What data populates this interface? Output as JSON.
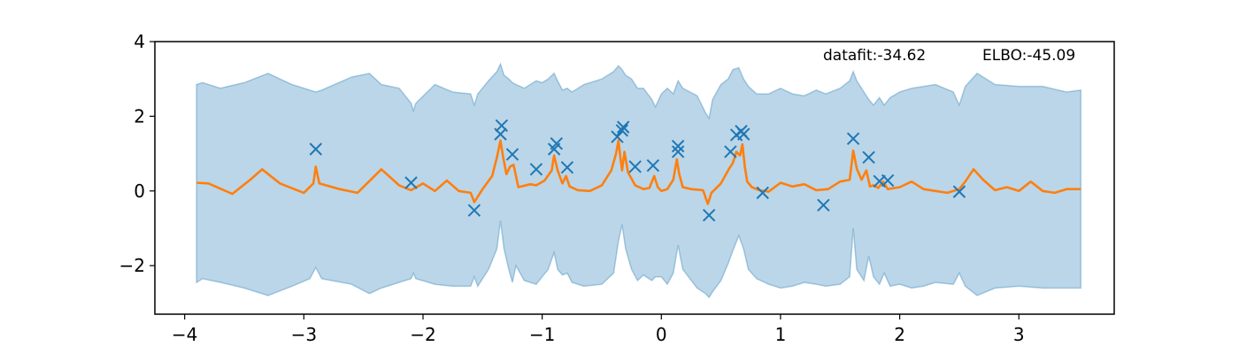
{
  "chart_data": {
    "type": "line",
    "title": "",
    "xlabel": "",
    "ylabel": "",
    "xlim": [
      -4.25,
      3.8
    ],
    "ylim": [
      -3.3,
      4.0
    ],
    "xticks": [
      -4,
      -3,
      -2,
      -1,
      0,
      1,
      2,
      3
    ],
    "yticks": [
      -2,
      0,
      2,
      4
    ],
    "grid": false,
    "annotations": {
      "datafit": "datafit:-34.62",
      "elbo": "ELBO:-45.09"
    },
    "colors": {
      "mean": "#ff7f0e",
      "band": "#1f77b4",
      "points": "#1f77b4"
    },
    "points": {
      "marker": "x",
      "x": [
        -2.9,
        -2.1,
        -1.57,
        -1.35,
        -1.34,
        -1.25,
        -1.05,
        -0.9,
        -0.88,
        -0.79,
        -0.37,
        -0.33,
        -0.32,
        -0.22,
        -0.07,
        0.14,
        0.14,
        0.4,
        0.58,
        0.63,
        0.67,
        0.69,
        0.85,
        1.36,
        1.61,
        1.74,
        1.83,
        1.9,
        2.5
      ],
      "y": [
        1.12,
        0.22,
        -0.52,
        1.52,
        1.75,
        0.98,
        0.58,
        1.12,
        1.27,
        0.63,
        1.45,
        1.62,
        1.71,
        0.65,
        0.68,
        1.05,
        1.2,
        -0.65,
        1.05,
        1.5,
        1.6,
        1.52,
        -0.05,
        -0.38,
        1.4,
        0.9,
        0.26,
        0.28,
        -0.02
      ]
    },
    "mean_x": [
      -3.9,
      -3.8,
      -3.6,
      -3.45,
      -3.35,
      -3.2,
      -3.0,
      -2.92,
      -2.9,
      -2.87,
      -2.7,
      -2.55,
      -2.35,
      -2.2,
      -2.1,
      -2.0,
      -1.9,
      -1.8,
      -1.7,
      -1.6,
      -1.57,
      -1.5,
      -1.42,
      -1.38,
      -1.35,
      -1.33,
      -1.3,
      -1.27,
      -1.24,
      -1.2,
      -1.1,
      -1.05,
      -0.98,
      -0.92,
      -0.9,
      -0.87,
      -0.83,
      -0.8,
      -0.77,
      -0.7,
      -0.6,
      -0.5,
      -0.42,
      -0.38,
      -0.36,
      -0.34,
      -0.33,
      -0.31,
      -0.28,
      -0.22,
      -0.15,
      -0.1,
      -0.06,
      -0.03,
      0.0,
      0.05,
      0.1,
      0.13,
      0.15,
      0.18,
      0.25,
      0.35,
      0.39,
      0.42,
      0.5,
      0.56,
      0.6,
      0.63,
      0.66,
      0.68,
      0.7,
      0.72,
      0.76,
      0.82,
      0.9,
      1.0,
      1.1,
      1.2,
      1.3,
      1.4,
      1.5,
      1.58,
      1.61,
      1.64,
      1.68,
      1.72,
      1.75,
      1.78,
      1.82,
      1.86,
      1.9,
      2.0,
      2.1,
      2.2,
      2.3,
      2.4,
      2.5,
      2.55,
      2.62,
      2.7,
      2.8,
      2.9,
      3.0,
      3.1,
      3.2,
      3.3,
      3.4,
      3.52
    ],
    "mean_y": [
      0.22,
      0.2,
      -0.08,
      0.3,
      0.58,
      0.2,
      -0.05,
      0.2,
      0.65,
      0.2,
      0.05,
      -0.05,
      0.58,
      0.15,
      0.02,
      0.2,
      0.0,
      0.28,
      0.0,
      -0.05,
      -0.3,
      0.05,
      0.4,
      0.9,
      1.35,
      0.95,
      0.45,
      0.65,
      0.7,
      0.1,
      0.18,
      0.15,
      0.28,
      0.55,
      0.95,
      0.55,
      0.2,
      0.4,
      0.12,
      0.02,
      0.0,
      0.15,
      0.55,
      1.0,
      1.35,
      0.8,
      0.55,
      1.05,
      0.5,
      0.15,
      0.05,
      0.08,
      0.4,
      0.1,
      0.0,
      0.05,
      0.3,
      0.85,
      0.45,
      0.1,
      0.05,
      0.02,
      -0.35,
      -0.05,
      0.2,
      0.55,
      0.75,
      1.05,
      0.95,
      1.25,
      0.65,
      0.25,
      0.1,
      0.02,
      -0.02,
      0.22,
      0.12,
      0.18,
      0.02,
      0.05,
      0.25,
      0.3,
      1.08,
      0.6,
      0.3,
      0.55,
      0.12,
      0.15,
      0.08,
      0.25,
      0.05,
      0.1,
      0.25,
      0.05,
      0.0,
      -0.05,
      0.05,
      0.25,
      0.58,
      0.3,
      0.02,
      0.1,
      0.0,
      0.25,
      0.0,
      -0.05,
      0.05,
      0.05
    ],
    "band_x": [
      -3.9,
      -3.85,
      -3.7,
      -3.5,
      -3.3,
      -3.1,
      -2.95,
      -2.9,
      -2.85,
      -2.6,
      -2.45,
      -2.35,
      -2.2,
      -2.1,
      -2.08,
      -2.06,
      -1.9,
      -1.75,
      -1.6,
      -1.57,
      -1.54,
      -1.45,
      -1.38,
      -1.35,
      -1.32,
      -1.28,
      -1.25,
      -1.22,
      -1.15,
      -1.05,
      -1.0,
      -0.95,
      -0.9,
      -0.87,
      -0.83,
      -0.79,
      -0.75,
      -0.65,
      -0.5,
      -0.4,
      -0.36,
      -0.33,
      -0.3,
      -0.25,
      -0.2,
      -0.15,
      -0.08,
      -0.05,
      0.0,
      0.05,
      0.1,
      0.14,
      0.18,
      0.3,
      0.37,
      0.4,
      0.43,
      0.5,
      0.56,
      0.6,
      0.65,
      0.69,
      0.73,
      0.8,
      0.9,
      1.0,
      1.1,
      1.2,
      1.3,
      1.38,
      1.5,
      1.58,
      1.61,
      1.64,
      1.7,
      1.74,
      1.78,
      1.83,
      1.87,
      1.92,
      2.0,
      2.1,
      2.2,
      2.3,
      2.45,
      2.5,
      2.55,
      2.65,
      2.8,
      3.0,
      3.2,
      3.4,
      3.52
    ],
    "band_upper": [
      2.85,
      2.9,
      2.75,
      2.9,
      3.15,
      2.85,
      2.7,
      2.65,
      2.7,
      3.05,
      3.15,
      2.85,
      2.75,
      2.35,
      2.15,
      2.35,
      2.85,
      2.65,
      2.6,
      2.3,
      2.6,
      2.95,
      3.2,
      3.4,
      3.1,
      3.0,
      2.9,
      2.85,
      2.75,
      2.95,
      2.9,
      3.0,
      3.15,
      2.95,
      2.7,
      2.75,
      2.65,
      2.85,
      3.0,
      3.2,
      3.35,
      3.25,
      3.1,
      3.0,
      2.75,
      2.75,
      2.45,
      2.25,
      2.6,
      2.75,
      2.6,
      2.95,
      2.75,
      2.55,
      2.1,
      1.95,
      2.45,
      2.85,
      3.0,
      3.25,
      3.3,
      3.0,
      2.8,
      2.6,
      2.6,
      2.75,
      2.6,
      2.55,
      2.7,
      2.6,
      2.75,
      2.95,
      3.2,
      2.95,
      2.65,
      2.45,
      2.3,
      2.5,
      2.3,
      2.5,
      2.65,
      2.75,
      2.8,
      2.85,
      2.65,
      2.3,
      2.8,
      3.15,
      2.85,
      2.8,
      2.8,
      2.65,
      2.7
    ],
    "band_lower": [
      -2.45,
      -2.35,
      -2.45,
      -2.6,
      -2.8,
      -2.55,
      -2.35,
      -2.05,
      -2.35,
      -2.5,
      -2.75,
      -2.6,
      -2.45,
      -2.35,
      -2.2,
      -2.35,
      -2.5,
      -2.55,
      -2.55,
      -2.3,
      -2.55,
      -2.1,
      -1.55,
      -0.8,
      -1.55,
      -2.1,
      -2.45,
      -2.0,
      -2.4,
      -2.5,
      -2.3,
      -2.1,
      -1.65,
      -2.1,
      -2.25,
      -2.2,
      -2.45,
      -2.55,
      -2.5,
      -2.2,
      -1.35,
      -0.9,
      -1.55,
      -2.1,
      -2.4,
      -2.25,
      -2.4,
      -2.3,
      -2.3,
      -2.5,
      -2.2,
      -1.45,
      -2.1,
      -2.6,
      -2.75,
      -2.85,
      -2.7,
      -2.4,
      -1.95,
      -1.6,
      -1.2,
      -1.55,
      -2.1,
      -2.35,
      -2.5,
      -2.6,
      -2.55,
      -2.45,
      -2.5,
      -2.55,
      -2.5,
      -2.3,
      -1.0,
      -2.1,
      -2.4,
      -1.75,
      -2.3,
      -2.5,
      -2.2,
      -2.55,
      -2.5,
      -2.6,
      -2.55,
      -2.45,
      -2.5,
      -2.2,
      -2.55,
      -2.8,
      -2.6,
      -2.55,
      -2.6,
      -2.6,
      -2.6
    ]
  }
}
